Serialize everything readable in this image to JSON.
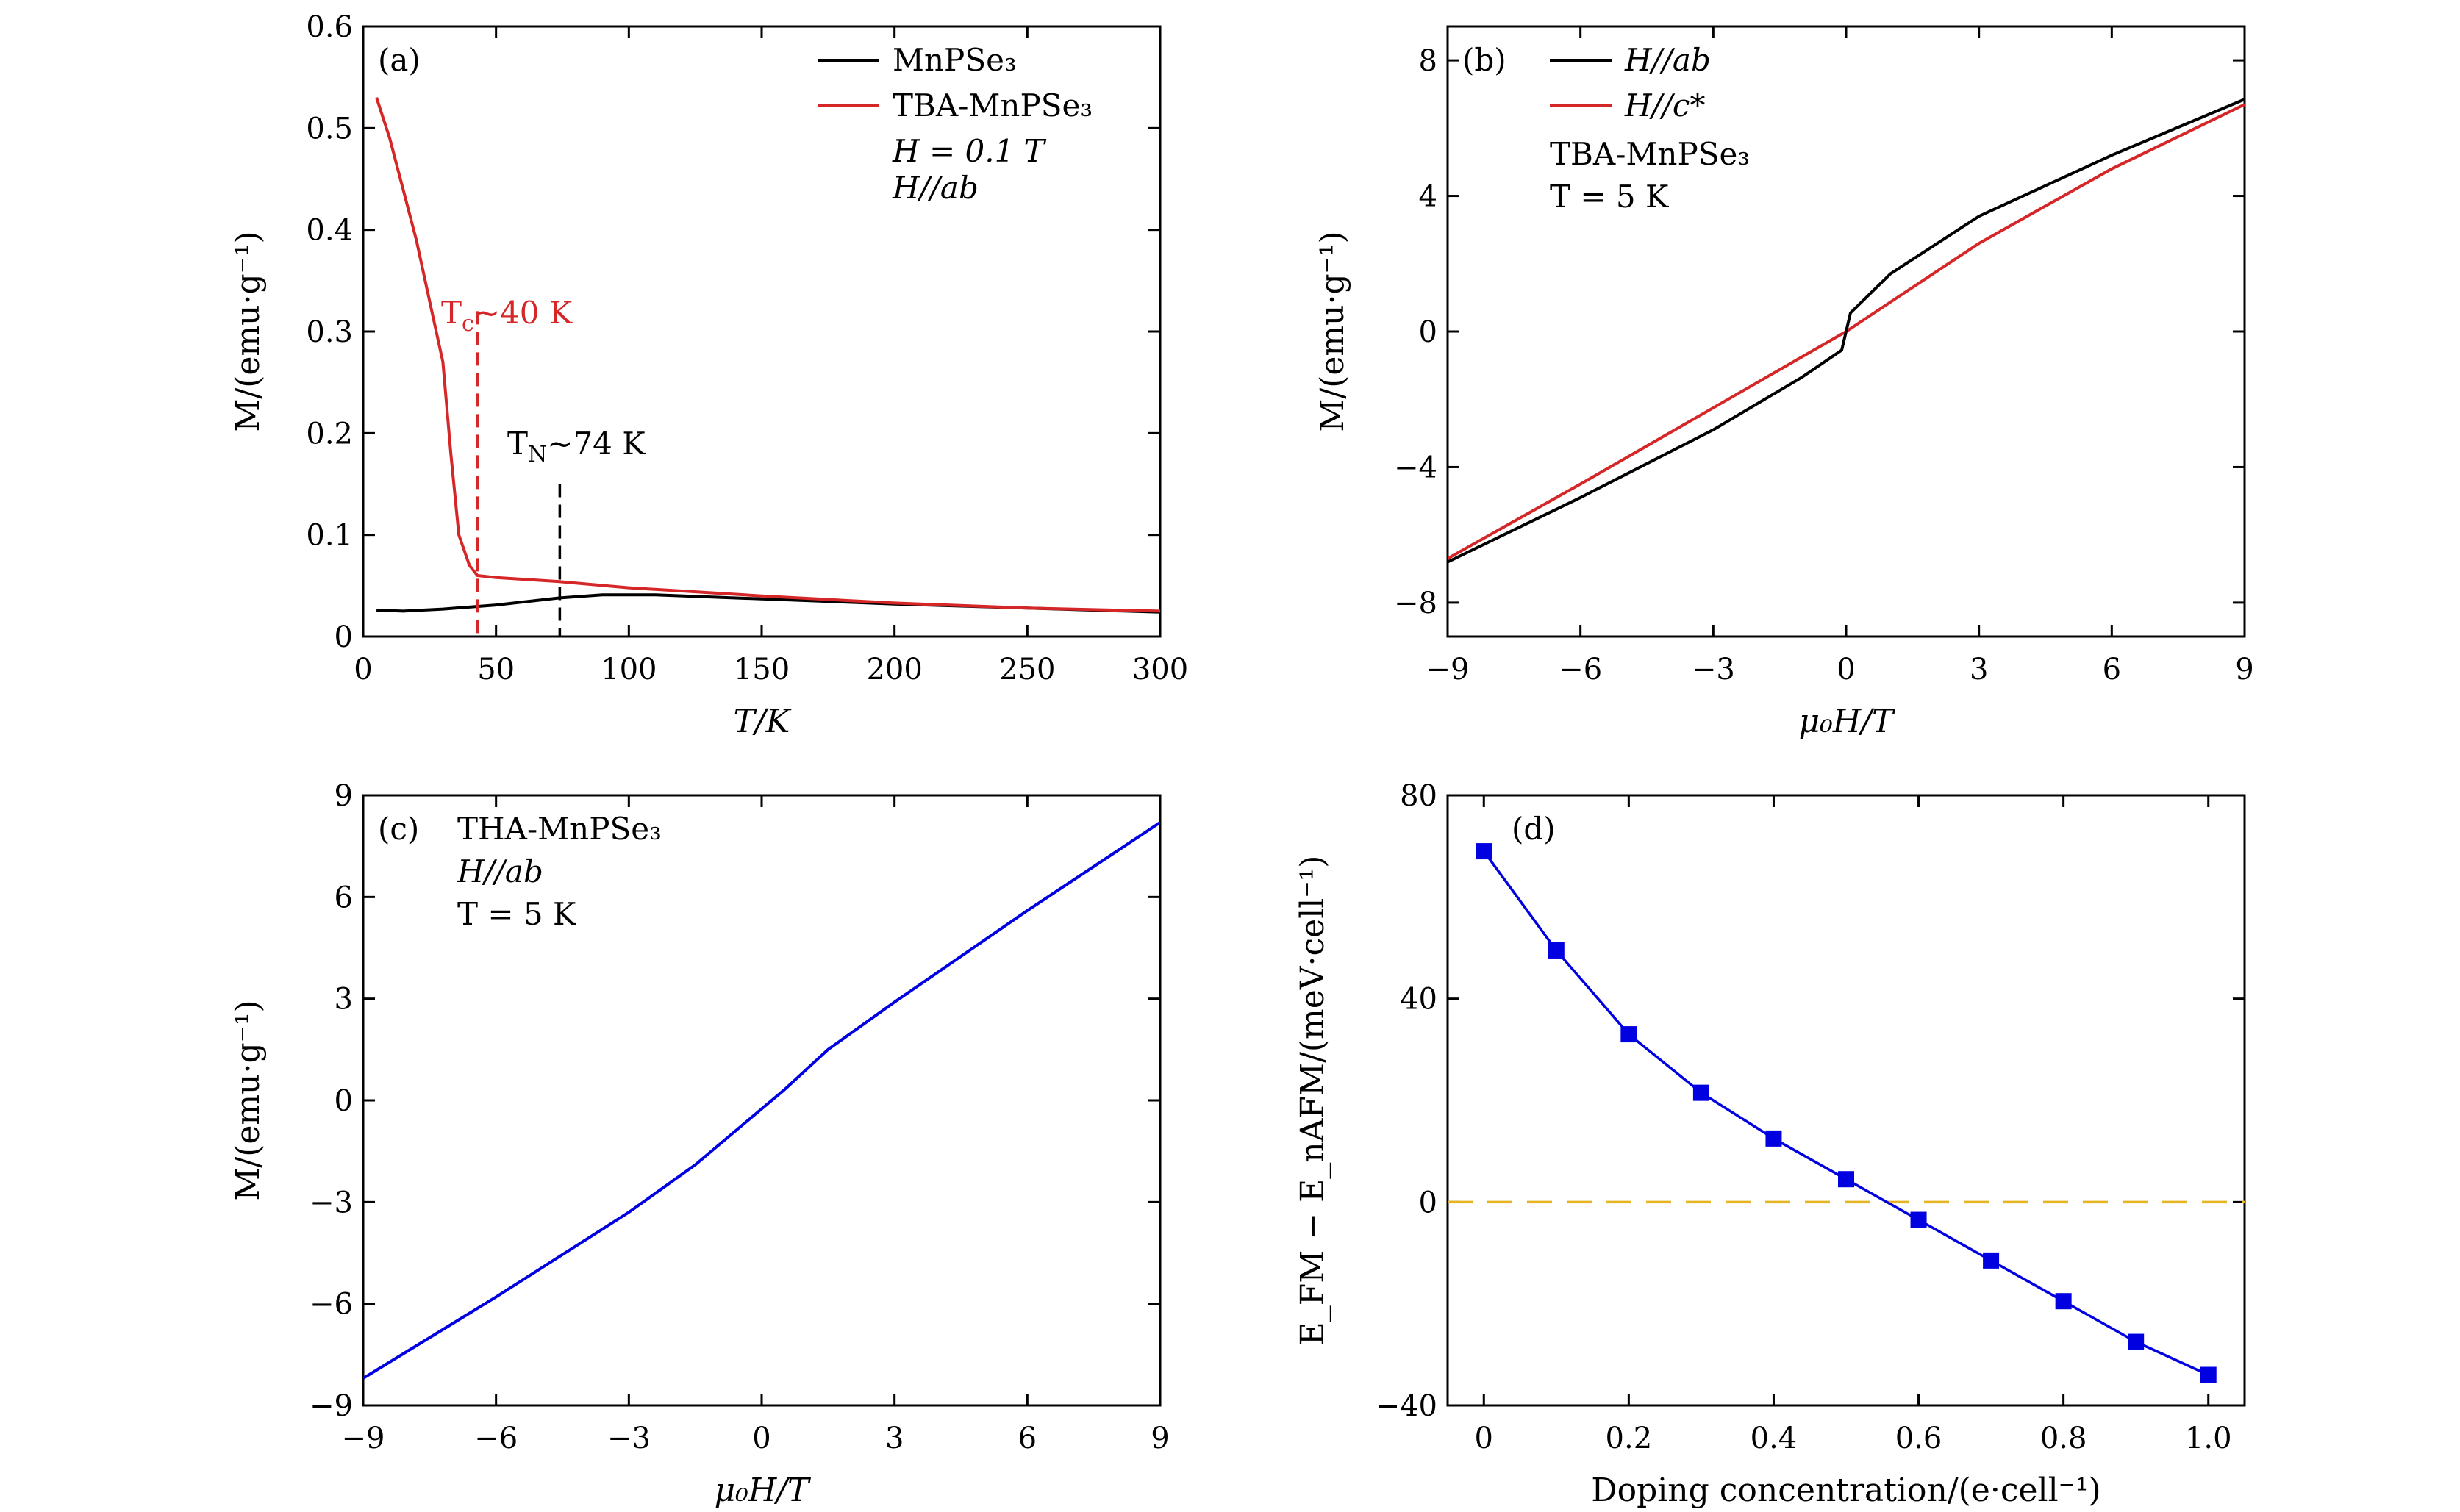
{
  "chart_data": [
    {
      "panel": "(a)",
      "type": "line",
      "xlabel": "T/K",
      "ylabel": "M/(emu·g⁻¹)",
      "xlim": [
        0,
        300
      ],
      "ylim": [
        0,
        0.6
      ],
      "xticks": [
        "0",
        "50",
        "100",
        "150",
        "200",
        "250",
        "300"
      ],
      "yticks": [
        "0",
        "0.1",
        "0.2",
        "0.3",
        "0.4",
        "0.5",
        "0.6"
      ],
      "legend": [
        "MnPSe₃",
        "TBA-MnPSe₃"
      ],
      "conditions": [
        "H = 0.1 T",
        "H//ab"
      ],
      "series": [
        {
          "name": "MnPSe₃",
          "color": "#000000",
          "x": [
            5,
            15,
            30,
            50,
            74,
            90,
            110,
            150,
            200,
            250,
            300
          ],
          "y": [
            0.026,
            0.025,
            0.027,
            0.031,
            0.038,
            0.041,
            0.041,
            0.037,
            0.032,
            0.028,
            0.024
          ]
        },
        {
          "name": "TBA-MnPSe₃",
          "color": "#d62728",
          "x": [
            5,
            10,
            15,
            20,
            25,
            30,
            33,
            36,
            40,
            43,
            50,
            74,
            100,
            150,
            200,
            250,
            300
          ],
          "y": [
            0.53,
            0.49,
            0.44,
            0.39,
            0.33,
            0.27,
            0.18,
            0.1,
            0.07,
            0.06,
            0.058,
            0.054,
            0.048,
            0.04,
            0.033,
            0.028,
            0.025
          ]
        }
      ],
      "annotations": [
        {
          "text": "Tc~40 K",
          "x": 43,
          "y_top": 0.32,
          "y_bottom": 0.0,
          "color": "#d62728"
        },
        {
          "text": "TN~74 K",
          "x": 74,
          "y_top": 0.15,
          "y_bottom": 0.0,
          "color": "#000000"
        }
      ]
    },
    {
      "panel": "(b)",
      "type": "line",
      "xlabel": "μ₀H/T",
      "ylabel": "M/(emu·g⁻¹)",
      "xlim": [
        -9,
        9
      ],
      "ylim": [
        -9,
        9
      ],
      "xticks": [
        "−9",
        "−6",
        "−3",
        "0",
        "3",
        "6",
        "9"
      ],
      "yticks": [
        "−8",
        "−4",
        "0",
        "4",
        "8"
      ],
      "legend": [
        "H//ab",
        "H//c*"
      ],
      "conditions": [
        "TBA-MnPSe₃",
        "T = 5 K"
      ],
      "series": [
        {
          "name": "H//ab",
          "color": "#000000",
          "x": [
            -9,
            -6,
            -3,
            -1,
            -0.1,
            0,
            0.1,
            1,
            3,
            6,
            9
          ],
          "y": [
            -6.8,
            -4.9,
            -2.9,
            -1.35,
            -0.55,
            0,
            0.55,
            1.7,
            3.4,
            5.2,
            6.85
          ]
        },
        {
          "name": "H//c*",
          "color": "#d62728",
          "x": [
            -9,
            -6,
            -3,
            0,
            3,
            6,
            9
          ],
          "y": [
            -6.7,
            -4.5,
            -2.25,
            0,
            2.6,
            4.8,
            6.7
          ]
        }
      ]
    },
    {
      "panel": "(c)",
      "type": "line",
      "xlabel": "μ₀H/T",
      "ylabel": "M/(emu·g⁻¹)",
      "xlim": [
        -9,
        9
      ],
      "ylim": [
        -9,
        9
      ],
      "xticks": [
        "−9",
        "−6",
        "−3",
        "0",
        "3",
        "6",
        "9"
      ],
      "yticks": [
        "−9",
        "−6",
        "−3",
        "0",
        "3",
        "6",
        "9"
      ],
      "conditions": [
        "THA-MnPSe₃",
        "H//ab",
        "T = 5 K"
      ],
      "series": [
        {
          "name": "THA-MnPSe₃",
          "color": "#0000e0",
          "x": [
            -9,
            -6,
            -3,
            -1.5,
            -0.5,
            0,
            0.5,
            1.5,
            3,
            6,
            9
          ],
          "y": [
            -8.2,
            -5.8,
            -3.3,
            -1.9,
            -0.8,
            -0.25,
            0.3,
            1.5,
            2.9,
            5.6,
            8.2
          ]
        }
      ]
    },
    {
      "panel": "(d)",
      "type": "scatter",
      "xlabel": "Doping concentration/(e·cell⁻¹)",
      "ylabel": "E_FM − E_nAFM/(meV·cell⁻¹)",
      "xlim": [
        -0.05,
        1.05
      ],
      "ylim": [
        -40,
        80
      ],
      "xticks": [
        "0",
        "0.2",
        "0.4",
        "0.6",
        "0.8",
        "1.0"
      ],
      "yticks": [
        "−40",
        "0",
        "40",
        "80"
      ],
      "reference_line": {
        "y": 0,
        "color": "#e6b422",
        "style": "dashed"
      },
      "series": [
        {
          "name": "E_FM − E_nAFM",
          "color": "#0000e0",
          "x": [
            0,
            0.1,
            0.2,
            0.3,
            0.4,
            0.5,
            0.6,
            0.7,
            0.8,
            0.9,
            1.0
          ],
          "y": [
            69,
            49.5,
            33,
            21.5,
            12.5,
            4.5,
            -3.5,
            -11.5,
            -19.5,
            -27.5,
            -34
          ]
        }
      ]
    }
  ]
}
